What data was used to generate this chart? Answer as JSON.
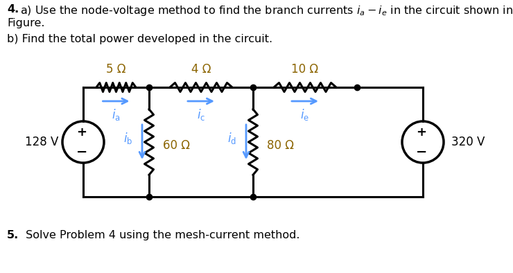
{
  "bg_color": "#ffffff",
  "text_color": "#000000",
  "circuit_color": "#000000",
  "arrow_color": "#5599ff",
  "resistor_label_color": "#8B6400",
  "title_bold": "4.",
  "title_rest": " a) Use the node-voltage method to find the branch currents $i_a - i_e$ in the circuit shown in",
  "title2": "Figure.",
  "title3": "b) Find the total power developed in the circuit.",
  "footer_bold": "5.",
  "footer_rest": "  Solve Problem 4 using the mesh-current method.",
  "res_top": [
    "5 Ω",
    "4 Ω",
    "10 Ω"
  ],
  "res_shunt": [
    "60 Ω",
    "80 Ω"
  ],
  "source_left": "128 V",
  "source_right": "320 V",
  "wire_lw": 2.2,
  "font_size_text": 11.5,
  "font_size_circuit": 12
}
